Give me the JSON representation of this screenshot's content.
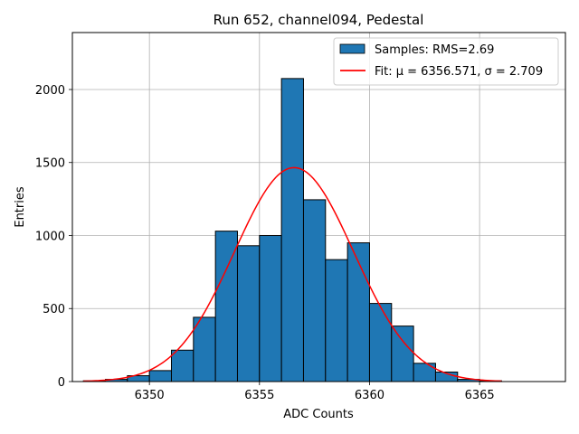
{
  "chart_data": {
    "type": "bar",
    "title": "Run 652, channel094, Pedestal",
    "xlabel": "ADC Counts",
    "ylabel": "Entries",
    "xlim": [
      6346.5,
      6368.9
    ],
    "ylim": [
      0,
      2390
    ],
    "xticks": [
      6350,
      6355,
      6360,
      6365
    ],
    "yticks": [
      0,
      500,
      1000,
      1500,
      2000
    ],
    "grid": true,
    "legend_position": "top-right",
    "colors": {
      "bars": "#1f77b4",
      "bar_edge": "#000000",
      "fit": "#ff0000",
      "grid": "#b0b0b0"
    },
    "histogram": {
      "name": "Samples: RMS=2.69",
      "bin_edges": [
        6347.0,
        6348.0,
        6349.0,
        6350.0,
        6351.0,
        6352.0,
        6353.0,
        6354.0,
        6355.0,
        6356.0,
        6357.0,
        6358.0,
        6359.0,
        6360.0,
        6361.0,
        6362.0,
        6363.0,
        6364.0,
        6365.0,
        6366.0
      ],
      "counts": [
        5,
        15,
        40,
        75,
        215,
        440,
        1030,
        930,
        1000,
        2075,
        1245,
        835,
        950,
        535,
        380,
        125,
        65,
        15,
        5
      ]
    },
    "fit": {
      "name": "Fit: μ = 6356.571, σ = 2.709",
      "mu": 6356.571,
      "sigma": 2.709,
      "amplitude": 1465,
      "x_range": [
        6347.0,
        6366.0
      ]
    }
  }
}
